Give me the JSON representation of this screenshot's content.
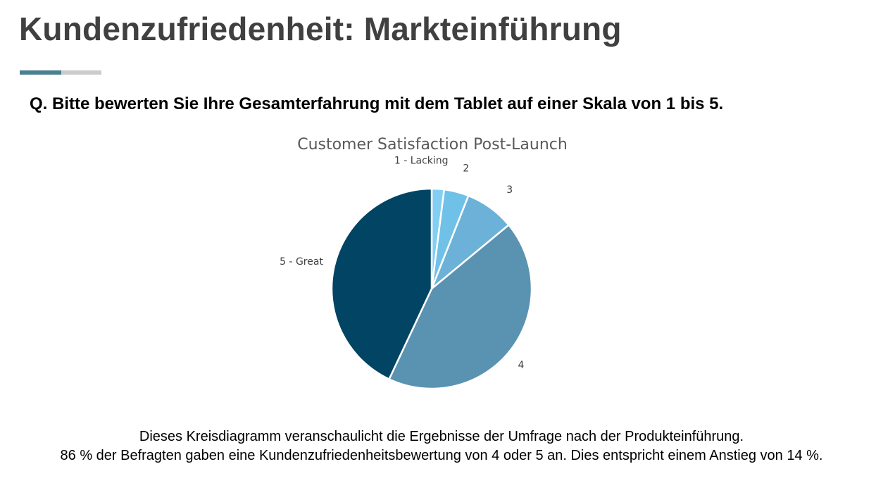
{
  "page": {
    "title": "Kundenzufriedenheit: Markteinführung",
    "question": "Q. Bitte bewerten Sie Ihre Gesamterfahrung mit dem Tablet auf einer Skala von 1 bis 5.",
    "caption_line1": "Dieses Kreisdiagramm veranschaulicht die Ergebnisse der Umfrage nach der Produkteinführung.",
    "caption_line2": "86 % der Befragten gaben eine Kundenzufriedenheitsbewertung von 4 oder 5 an. Dies entspricht einem Anstieg von 14 %."
  },
  "colors": {
    "accent_primary": "#4a7f92",
    "accent_secondary": "#cccccc"
  },
  "chart_data": {
    "type": "pie",
    "title": "Customer Satisfaction Post-Launch",
    "categories": [
      "1 - Lacking",
      "2",
      "3",
      "4",
      "5 - Great"
    ],
    "values": [
      2,
      4,
      8,
      43,
      43
    ],
    "colors": [
      "#82cff3",
      "#6fc1e8",
      "#6cb2d8",
      "#5a93b2",
      "#024463"
    ],
    "start_angle_deg": 0,
    "direction": "clockwise",
    "legend": "none"
  }
}
